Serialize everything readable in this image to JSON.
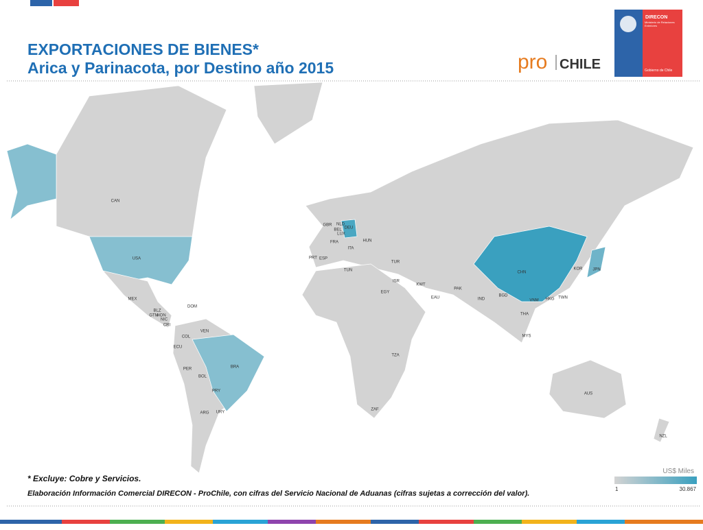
{
  "header": {
    "title": "EXPORTACIONES DE BIENES*",
    "subtitle": "Arica y Parinacota, por Destino año 2015"
  },
  "logos": {
    "pro": "pro",
    "chile": "CHILE",
    "direcon": "DIRECON",
    "ministry": "Ministerio de Relaciones Exteriores",
    "government": "Gobierno de Chile"
  },
  "map": {
    "countries": [
      "CAN",
      "USA",
      "MEX",
      "DOM",
      "BLZ",
      "GTM",
      "HON",
      "NIC",
      "CRI",
      "VEN",
      "COL",
      "ECU",
      "PER",
      "BOL",
      "BRA",
      "PRY",
      "ARG",
      "URY",
      "GBR",
      "NLD",
      "BEL",
      "LUX",
      "DEU",
      "FRA",
      "HUN",
      "ESP",
      "PRT",
      "ITA",
      "TUN",
      "TUR",
      "ISR",
      "EGY",
      "KWT",
      "EAU",
      "PAK",
      "IND",
      "BGD",
      "CHN",
      "KOR",
      "JPN",
      "VNM",
      "HKG",
      "TWN",
      "THA",
      "MYS",
      "TZA",
      "ZAF",
      "AUS",
      "NZL"
    ],
    "legend": {
      "title": "US$ Miles",
      "min": "1",
      "max": "30.867"
    }
  },
  "footer": {
    "note": "* Excluye: Cobre y Servicios.",
    "source": "Elaboración Información Comercial DIRECON - ProChile, con cifras del Servicio Nacional de Aduanas (cifras sujetas a corrección del valor)."
  }
}
